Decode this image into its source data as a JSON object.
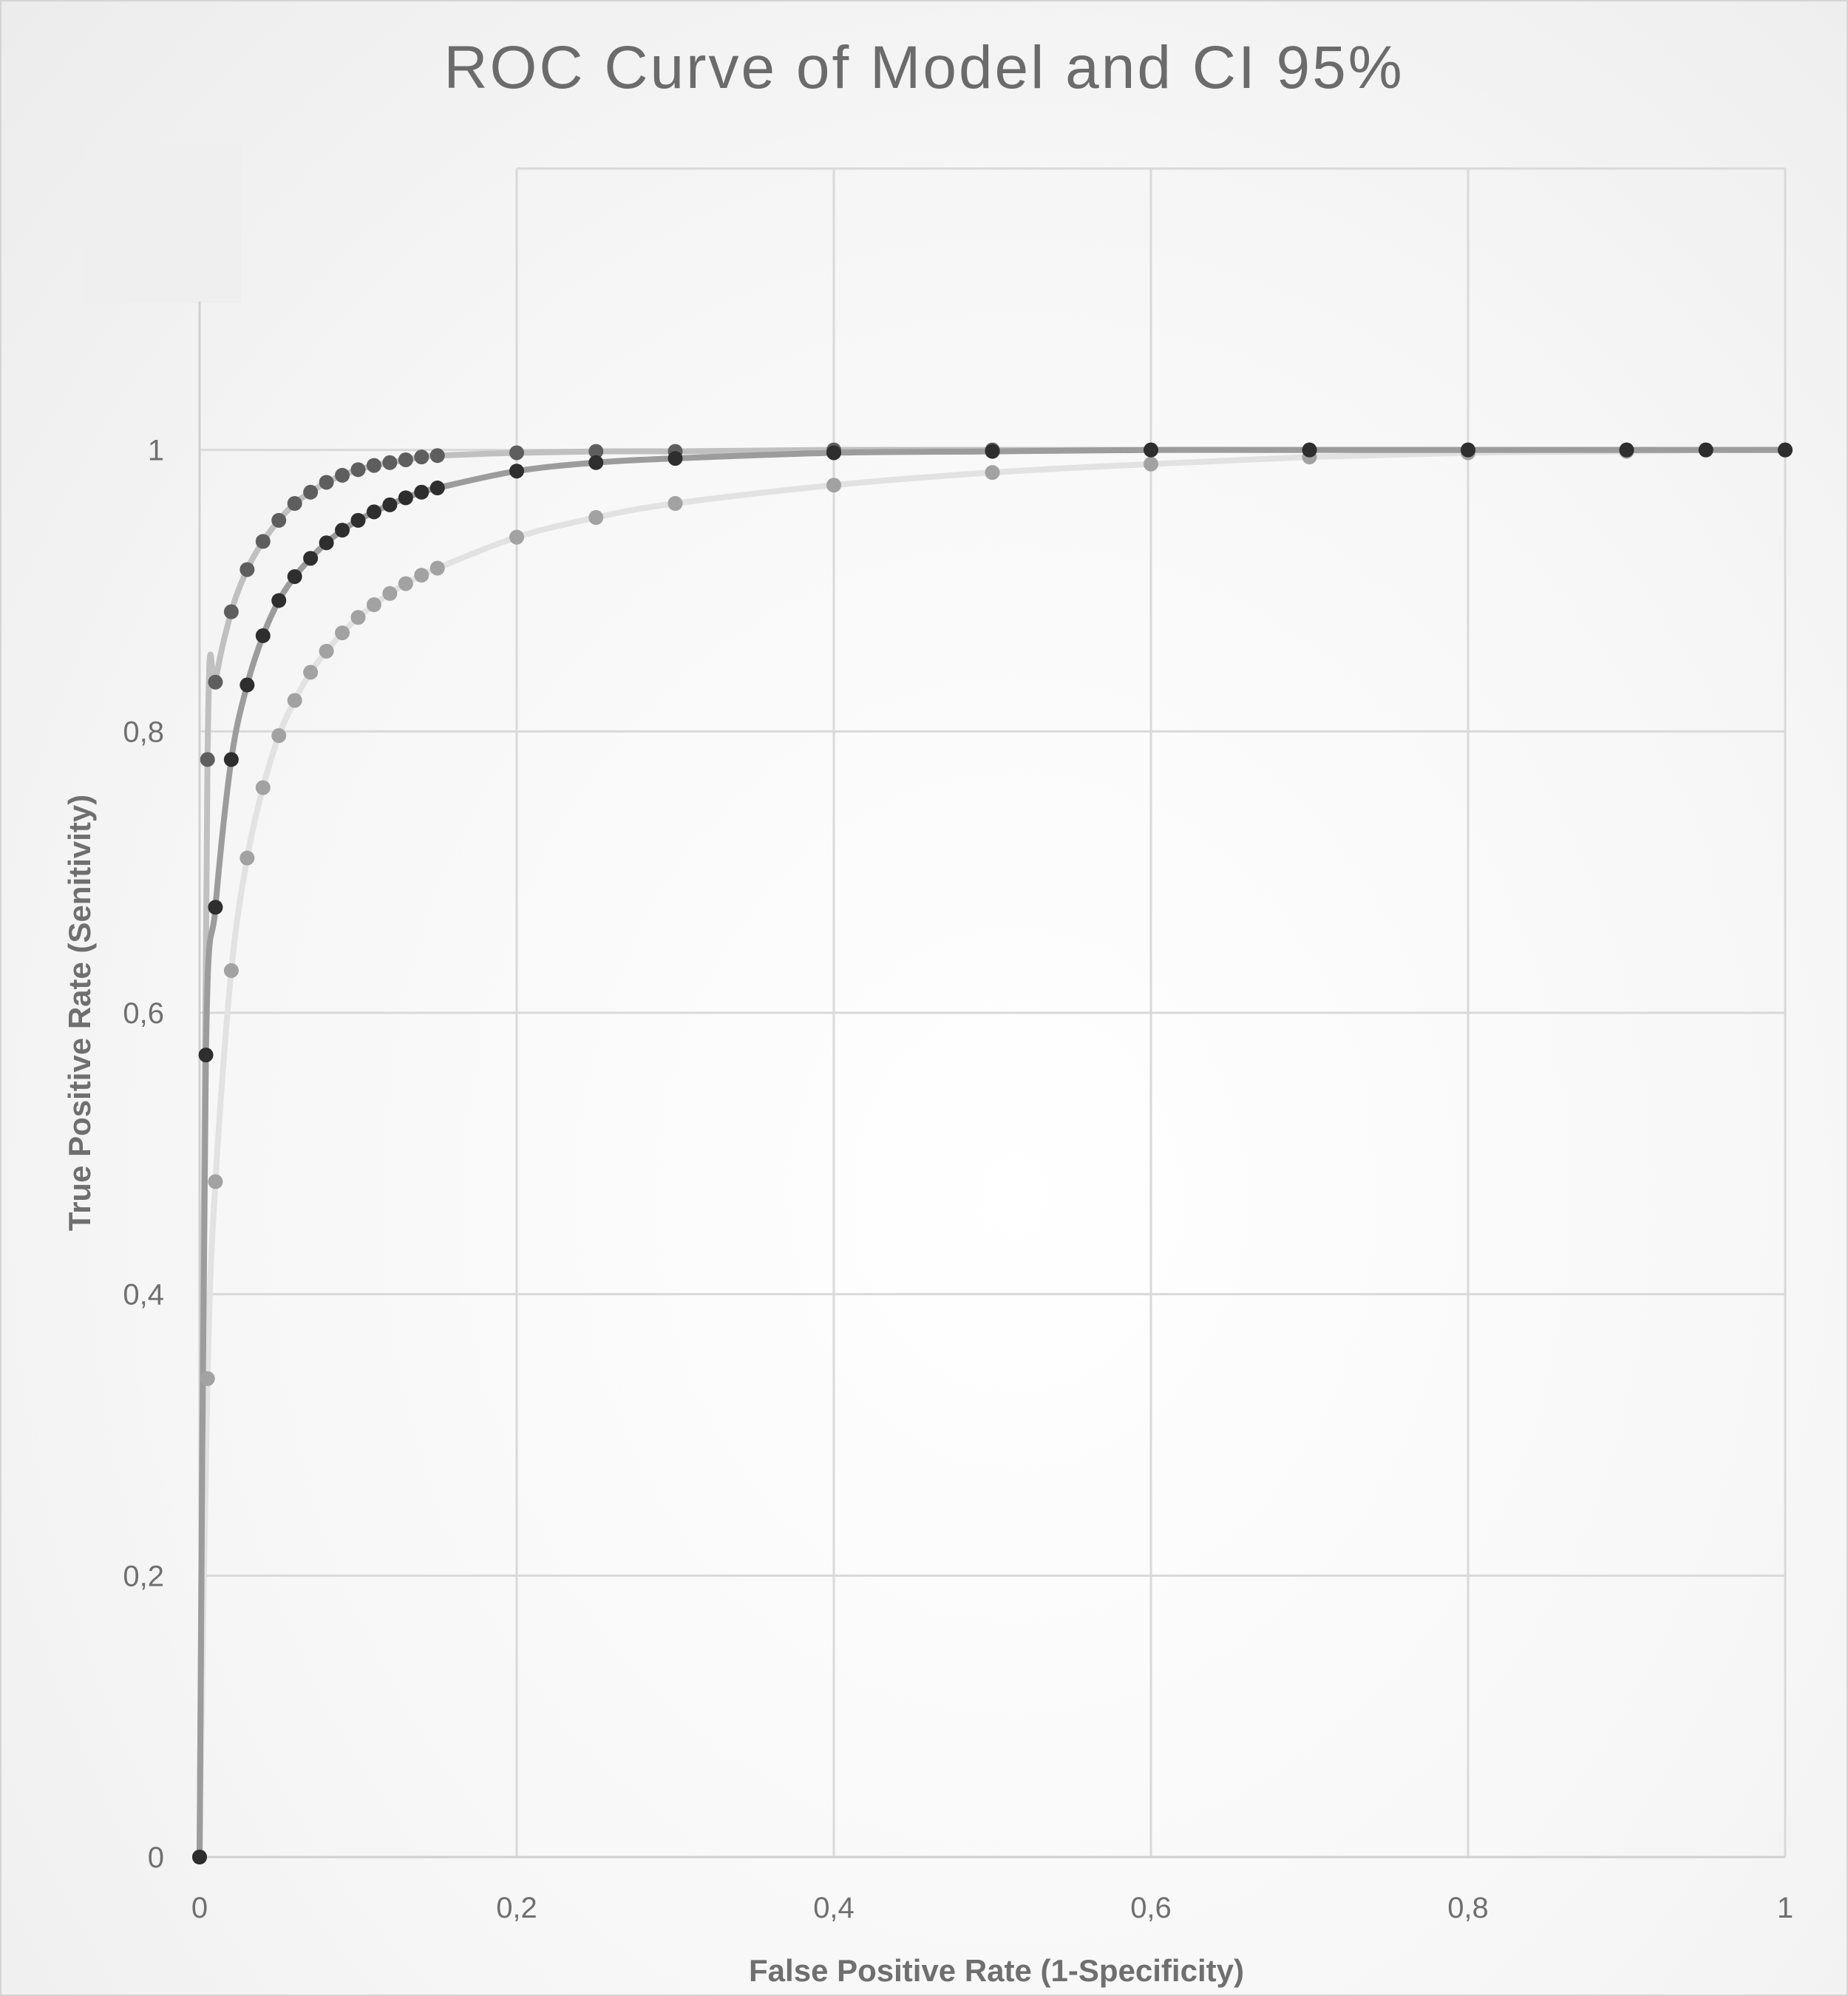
{
  "chart_data": {
    "type": "scatter",
    "title": "ROC Curve of Model and CI 95%",
    "xlabel": "False Positive Rate (1-Specificity)",
    "ylabel": "True Positive Rate (Senitivity)",
    "xlim": [
      0,
      1
    ],
    "ylim": [
      0,
      1.2
    ],
    "x_ticks": [
      "0",
      "0,2",
      "0,4",
      "0,6",
      "0,8",
      "1"
    ],
    "x_tick_values": [
      0,
      0.2,
      0.4,
      0.6,
      0.8,
      1
    ],
    "y_ticks": [
      "0",
      "0,2",
      "0,4",
      "0,6",
      "0,8",
      "1"
    ],
    "y_tick_values": [
      0,
      0.2,
      0.4,
      0.6,
      0.8,
      1
    ],
    "grid": true,
    "legend": "top-left",
    "series": [
      {
        "color": "#5e5e5e",
        "line_color": "#c0c0c0",
        "points": [
          [
            0,
            0
          ],
          [
            0.005,
            0.78
          ],
          [
            0.01,
            0.835
          ],
          [
            0.02,
            0.885
          ],
          [
            0.03,
            0.915
          ],
          [
            0.04,
            0.935
          ],
          [
            0.05,
            0.95
          ],
          [
            0.06,
            0.962
          ],
          [
            0.07,
            0.97
          ],
          [
            0.08,
            0.977
          ],
          [
            0.09,
            0.982
          ],
          [
            0.1,
            0.986
          ],
          [
            0.11,
            0.989
          ],
          [
            0.12,
            0.991
          ],
          [
            0.13,
            0.993
          ],
          [
            0.14,
            0.995
          ],
          [
            0.15,
            0.996
          ],
          [
            0.2,
            0.998
          ],
          [
            0.25,
            0.999
          ],
          [
            0.3,
            0.999
          ],
          [
            0.4,
            1.0
          ],
          [
            0.5,
            1.0
          ],
          [
            0.6,
            1.0
          ],
          [
            0.7,
            1.0
          ],
          [
            0.8,
            1.0
          ],
          [
            0.9,
            1.0
          ],
          [
            0.95,
            1.0
          ],
          [
            1.0,
            1.0
          ]
        ]
      },
      {
        "color": "#2e2e2e",
        "line_color": "#9c9c9c",
        "points": [
          [
            0,
            0
          ],
          [
            0.004,
            0.57
          ],
          [
            0.01,
            0.675
          ],
          [
            0.02,
            0.78
          ],
          [
            0.03,
            0.833
          ],
          [
            0.04,
            0.868
          ],
          [
            0.05,
            0.893
          ],
          [
            0.06,
            0.91
          ],
          [
            0.07,
            0.923
          ],
          [
            0.08,
            0.934
          ],
          [
            0.09,
            0.943
          ],
          [
            0.1,
            0.95
          ],
          [
            0.11,
            0.956
          ],
          [
            0.12,
            0.961
          ],
          [
            0.13,
            0.966
          ],
          [
            0.14,
            0.97
          ],
          [
            0.15,
            0.973
          ],
          [
            0.2,
            0.985
          ],
          [
            0.25,
            0.991
          ],
          [
            0.3,
            0.994
          ],
          [
            0.4,
            0.998
          ],
          [
            0.5,
            0.999
          ],
          [
            0.6,
            1.0
          ],
          [
            0.7,
            1.0
          ],
          [
            0.8,
            1.0
          ],
          [
            0.9,
            1.0
          ],
          [
            0.95,
            1.0
          ],
          [
            1.0,
            1.0
          ]
        ]
      },
      {
        "color": "#a2a2a2",
        "line_color": "#e2e2e2",
        "points": [
          [
            0,
            0
          ],
          [
            0.005,
            0.34
          ],
          [
            0.01,
            0.48
          ],
          [
            0.02,
            0.63
          ],
          [
            0.03,
            0.71
          ],
          [
            0.04,
            0.76
          ],
          [
            0.05,
            0.797
          ],
          [
            0.06,
            0.822
          ],
          [
            0.07,
            0.842
          ],
          [
            0.08,
            0.857
          ],
          [
            0.09,
            0.87
          ],
          [
            0.1,
            0.881
          ],
          [
            0.11,
            0.89
          ],
          [
            0.12,
            0.898
          ],
          [
            0.13,
            0.905
          ],
          [
            0.14,
            0.911
          ],
          [
            0.15,
            0.916
          ],
          [
            0.2,
            0.938
          ],
          [
            0.25,
            0.952
          ],
          [
            0.3,
            0.962
          ],
          [
            0.4,
            0.975
          ],
          [
            0.5,
            0.984
          ],
          [
            0.6,
            0.99
          ],
          [
            0.7,
            0.995
          ],
          [
            0.8,
            0.998
          ],
          [
            0.9,
            0.999
          ],
          [
            0.95,
            1.0
          ],
          [
            1.0,
            1.0
          ]
        ]
      }
    ]
  }
}
